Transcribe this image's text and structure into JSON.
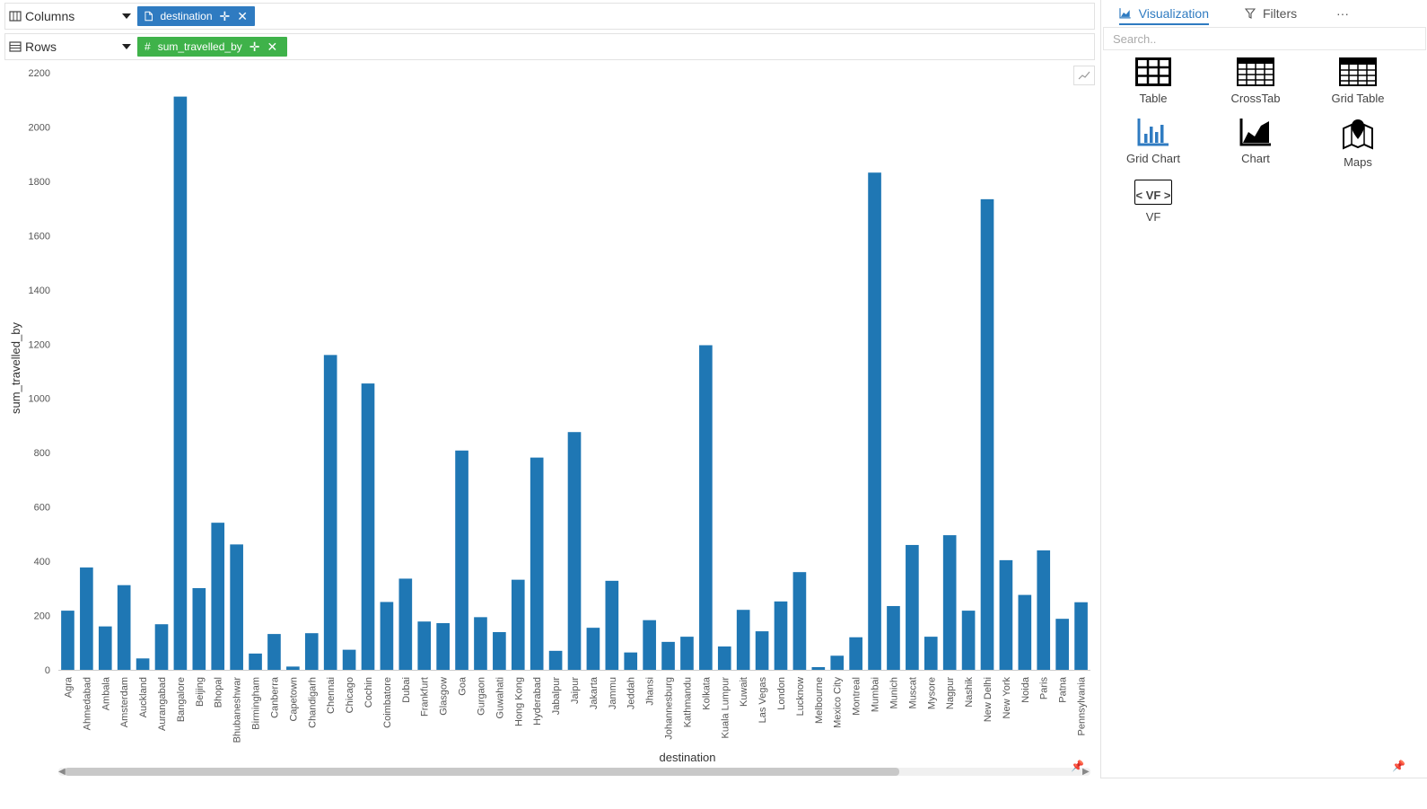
{
  "shelves": {
    "columns_label": "Columns",
    "rows_label": "Rows",
    "columns_pill": "destination",
    "rows_pill": "sum_travelled_by",
    "columns_pill_color": "#2f7bc1",
    "rows_pill_color": "#3fb24a"
  },
  "right_panel": {
    "tabs": {
      "visualization": "Visualization",
      "filters": "Filters",
      "more": "···"
    },
    "search_placeholder": "Search..",
    "items": {
      "table": "Table",
      "crosstab": "CrossTab",
      "grid_table": "Grid Table",
      "grid_chart": "Grid Chart",
      "chart": "Chart",
      "maps": "Maps",
      "vf": "VF",
      "vf_glyph": "< VF >"
    }
  },
  "chart_data": {
    "type": "bar",
    "xlabel": "destination",
    "ylabel": "sum_travelled_by",
    "ylim": [
      0,
      2200
    ],
    "yticks": [
      0,
      200,
      400,
      600,
      800,
      1000,
      1200,
      1400,
      1600,
      1800,
      2000,
      2200
    ],
    "bar_color": "#1f77b4",
    "categories": [
      "Agra",
      "Ahmedabad",
      "Ambala",
      "Amsterdam",
      "Auckland",
      "Aurangabad",
      "Bangalore",
      "Beijing",
      "Bhopal",
      "Bhubaneshwar",
      "Birmingham",
      "Canberra",
      "Capetown",
      "Chandigarh",
      "Chennai",
      "Chicago",
      "Cochin",
      "Coimbatore",
      "Dubai",
      "Frankfurt",
      "Glasgow",
      "Goa",
      "Gurgaon",
      "Guwahati",
      "Hong Kong",
      "Hyderabad",
      "Jabalpur",
      "Jaipur",
      "Jakarta",
      "Jammu",
      "Jeddah",
      "Jhansi",
      "Johannesburg",
      "Kathmandu",
      "Kolkata",
      "Kuala Lumpur",
      "Kuwait",
      "Las Vegas",
      "London",
      "Lucknow",
      "Melbourne",
      "Mexico City",
      "Montreal",
      "Mumbai",
      "Munich",
      "Muscat",
      "Mysore",
      "Nagpur",
      "Nashik",
      "New Delhi",
      "New York",
      "Noida",
      "Paris",
      "Patna",
      "Pennsylvania"
    ],
    "values": [
      218,
      377,
      160,
      312,
      42,
      168,
      2112,
      301,
      542,
      462,
      60,
      132,
      12,
      135,
      1160,
      74,
      1055,
      250,
      336,
      178,
      172,
      808,
      194,
      139,
      332,
      782,
      70,
      876,
      155,
      328,
      64,
      183,
      103,
      122,
      1196,
      86,
      221,
      142,
      252,
      360,
      10,
      52,
      120,
      1832,
      235,
      460,
      122,
      496,
      218,
      1734,
      404,
      276,
      440,
      188,
      249
    ]
  }
}
